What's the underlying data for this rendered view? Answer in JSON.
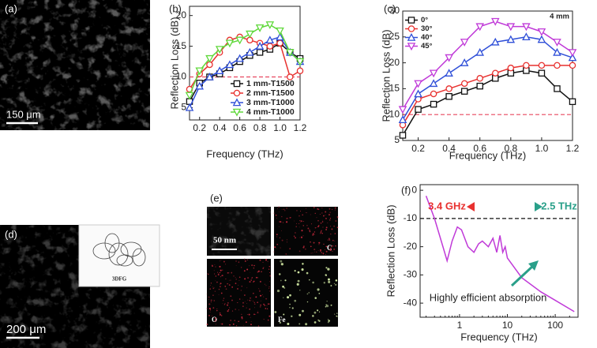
{
  "images": {
    "a": {
      "label": "(a)",
      "scale_bar": "150 μm"
    },
    "d": {
      "label": "(d)",
      "scale_bar": "200 μm",
      "inset_label": "3DFG"
    },
    "e": {
      "label": "(e)",
      "scale_bar": "50 nm",
      "maps": [
        "C",
        "O",
        "Fe"
      ]
    }
  },
  "chart_data": [
    {
      "type": "line",
      "label": "(b)",
      "xlabel": "Frequency (THz)",
      "ylabel": "Reflection Loss (dB)",
      "x": [
        0.1,
        0.2,
        0.3,
        0.4,
        0.5,
        0.6,
        0.7,
        0.8,
        0.9,
        1.0,
        1.1,
        1.2
      ],
      "xlim": [
        0.1,
        1.2
      ],
      "xticks": [
        0.2,
        0.4,
        0.6,
        0.8,
        {
          "value": 1,
          "label": "1.0"
        },
        1.2
      ],
      "ylim": [
        3,
        21.5
      ],
      "yticks": [
        5,
        10,
        15,
        20
      ],
      "reference_line": {
        "value": 10,
        "color": "#e8475f"
      },
      "legend": "lower right",
      "series": [
        {
          "name": "1 mm-T1500",
          "color": "#111111",
          "marker": "square",
          "values": [
            6,
            9,
            10,
            10.5,
            11.5,
            12.5,
            13.5,
            14,
            14.5,
            15.5,
            14,
            13
          ]
        },
        {
          "name": "2 mm-T1500",
          "color": "#e8312f",
          "marker": "circle",
          "values": [
            8,
            10.5,
            12,
            14,
            16,
            16.5,
            16,
            15.5,
            15,
            15.5,
            10,
            11
          ]
        },
        {
          "name": "3 mm-T1000",
          "color": "#3050d8",
          "marker": "triangle-up",
          "values": [
            5,
            8.5,
            10,
            11,
            12,
            13,
            14,
            15,
            16,
            16.5,
            14,
            12.5
          ]
        },
        {
          "name": "4 mm-T1000",
          "color": "#5fd83a",
          "marker": "triangle-down",
          "values": [
            7,
            11,
            13,
            14.5,
            15.5,
            16,
            17,
            18,
            18.5,
            17.5,
            14,
            12.5
          ]
        }
      ]
    },
    {
      "type": "line",
      "label": "(c)",
      "xlabel": "Frequency (THz)",
      "ylabel": "Reflection Loss (dB)",
      "x": [
        0.1,
        0.2,
        0.3,
        0.4,
        0.5,
        0.6,
        0.7,
        0.8,
        0.9,
        1.0,
        1.1,
        1.2
      ],
      "xlim": [
        0.1,
        1.2
      ],
      "xticks": [
        0.2,
        0.4,
        0.6,
        0.8,
        {
          "value": 1,
          "label": "1.0"
        },
        1.2
      ],
      "ylim": [
        5,
        30
      ],
      "yticks": [
        5,
        10,
        15,
        20,
        25,
        30
      ],
      "reference_line": {
        "value": 10,
        "color": "#e8475f"
      },
      "legend": "upper left",
      "annotations": [
        {
          "text": "4 mm"
        }
      ],
      "series": [
        {
          "name": "0°",
          "color": "#111111",
          "marker": "square",
          "values": [
            6,
            11,
            12,
            13.5,
            14.5,
            15.5,
            17,
            18,
            18.5,
            18,
            15,
            12.5
          ]
        },
        {
          "name": "30°",
          "color": "#e8312f",
          "marker": "circle",
          "values": [
            8,
            13,
            14,
            15,
            16,
            17,
            18,
            19,
            19.5,
            19.5,
            19.5,
            19.5
          ]
        },
        {
          "name": "40°",
          "color": "#3050d8",
          "marker": "triangle-up",
          "values": [
            9,
            14,
            16,
            18,
            20,
            22,
            24,
            24.5,
            25,
            24.5,
            22,
            21
          ]
        },
        {
          "name": "45°",
          "color": "#c03ad8",
          "marker": "triangle-down",
          "values": [
            11,
            16,
            18,
            21,
            24,
            27,
            28,
            27,
            27,
            26,
            24,
            22
          ]
        }
      ]
    },
    {
      "type": "line",
      "label": "(f)",
      "xlabel": "Frequency (THz)",
      "ylabel": "Reflection Loss (dB)",
      "x": [
        0.2,
        0.3,
        0.45,
        0.55,
        0.7,
        0.9,
        1.1,
        1.5,
        2,
        2.5,
        3,
        4,
        5,
        6,
        7,
        8,
        9,
        10,
        20,
        50,
        100,
        250
      ],
      "xscale": "log",
      "xlim": [
        0.15,
        300
      ],
      "xticks": [
        1,
        10,
        100
      ],
      "ylim": [
        -45,
        2
      ],
      "yticks": [
        0,
        -10,
        -20,
        -30,
        -40
      ],
      "reference_line": {
        "value": -10,
        "color": "#111111"
      },
      "annotations": [
        {
          "text": "3.4 GHz",
          "color": "#e8312f"
        },
        {
          "text": "2.5 THz",
          "color": "#2aa08a"
        },
        {
          "text": "Highly efficient absorption",
          "color": "#222222"
        }
      ],
      "series": [
        {
          "color": "#c03ad8",
          "values": [
            -2,
            -10,
            -20,
            -25,
            -18,
            -13,
            -14,
            -20,
            -22,
            -19,
            -18,
            -20,
            -17,
            -22,
            -16,
            -22,
            -20,
            -24,
            -31,
            -36,
            -39,
            -43
          ]
        }
      ]
    }
  ]
}
